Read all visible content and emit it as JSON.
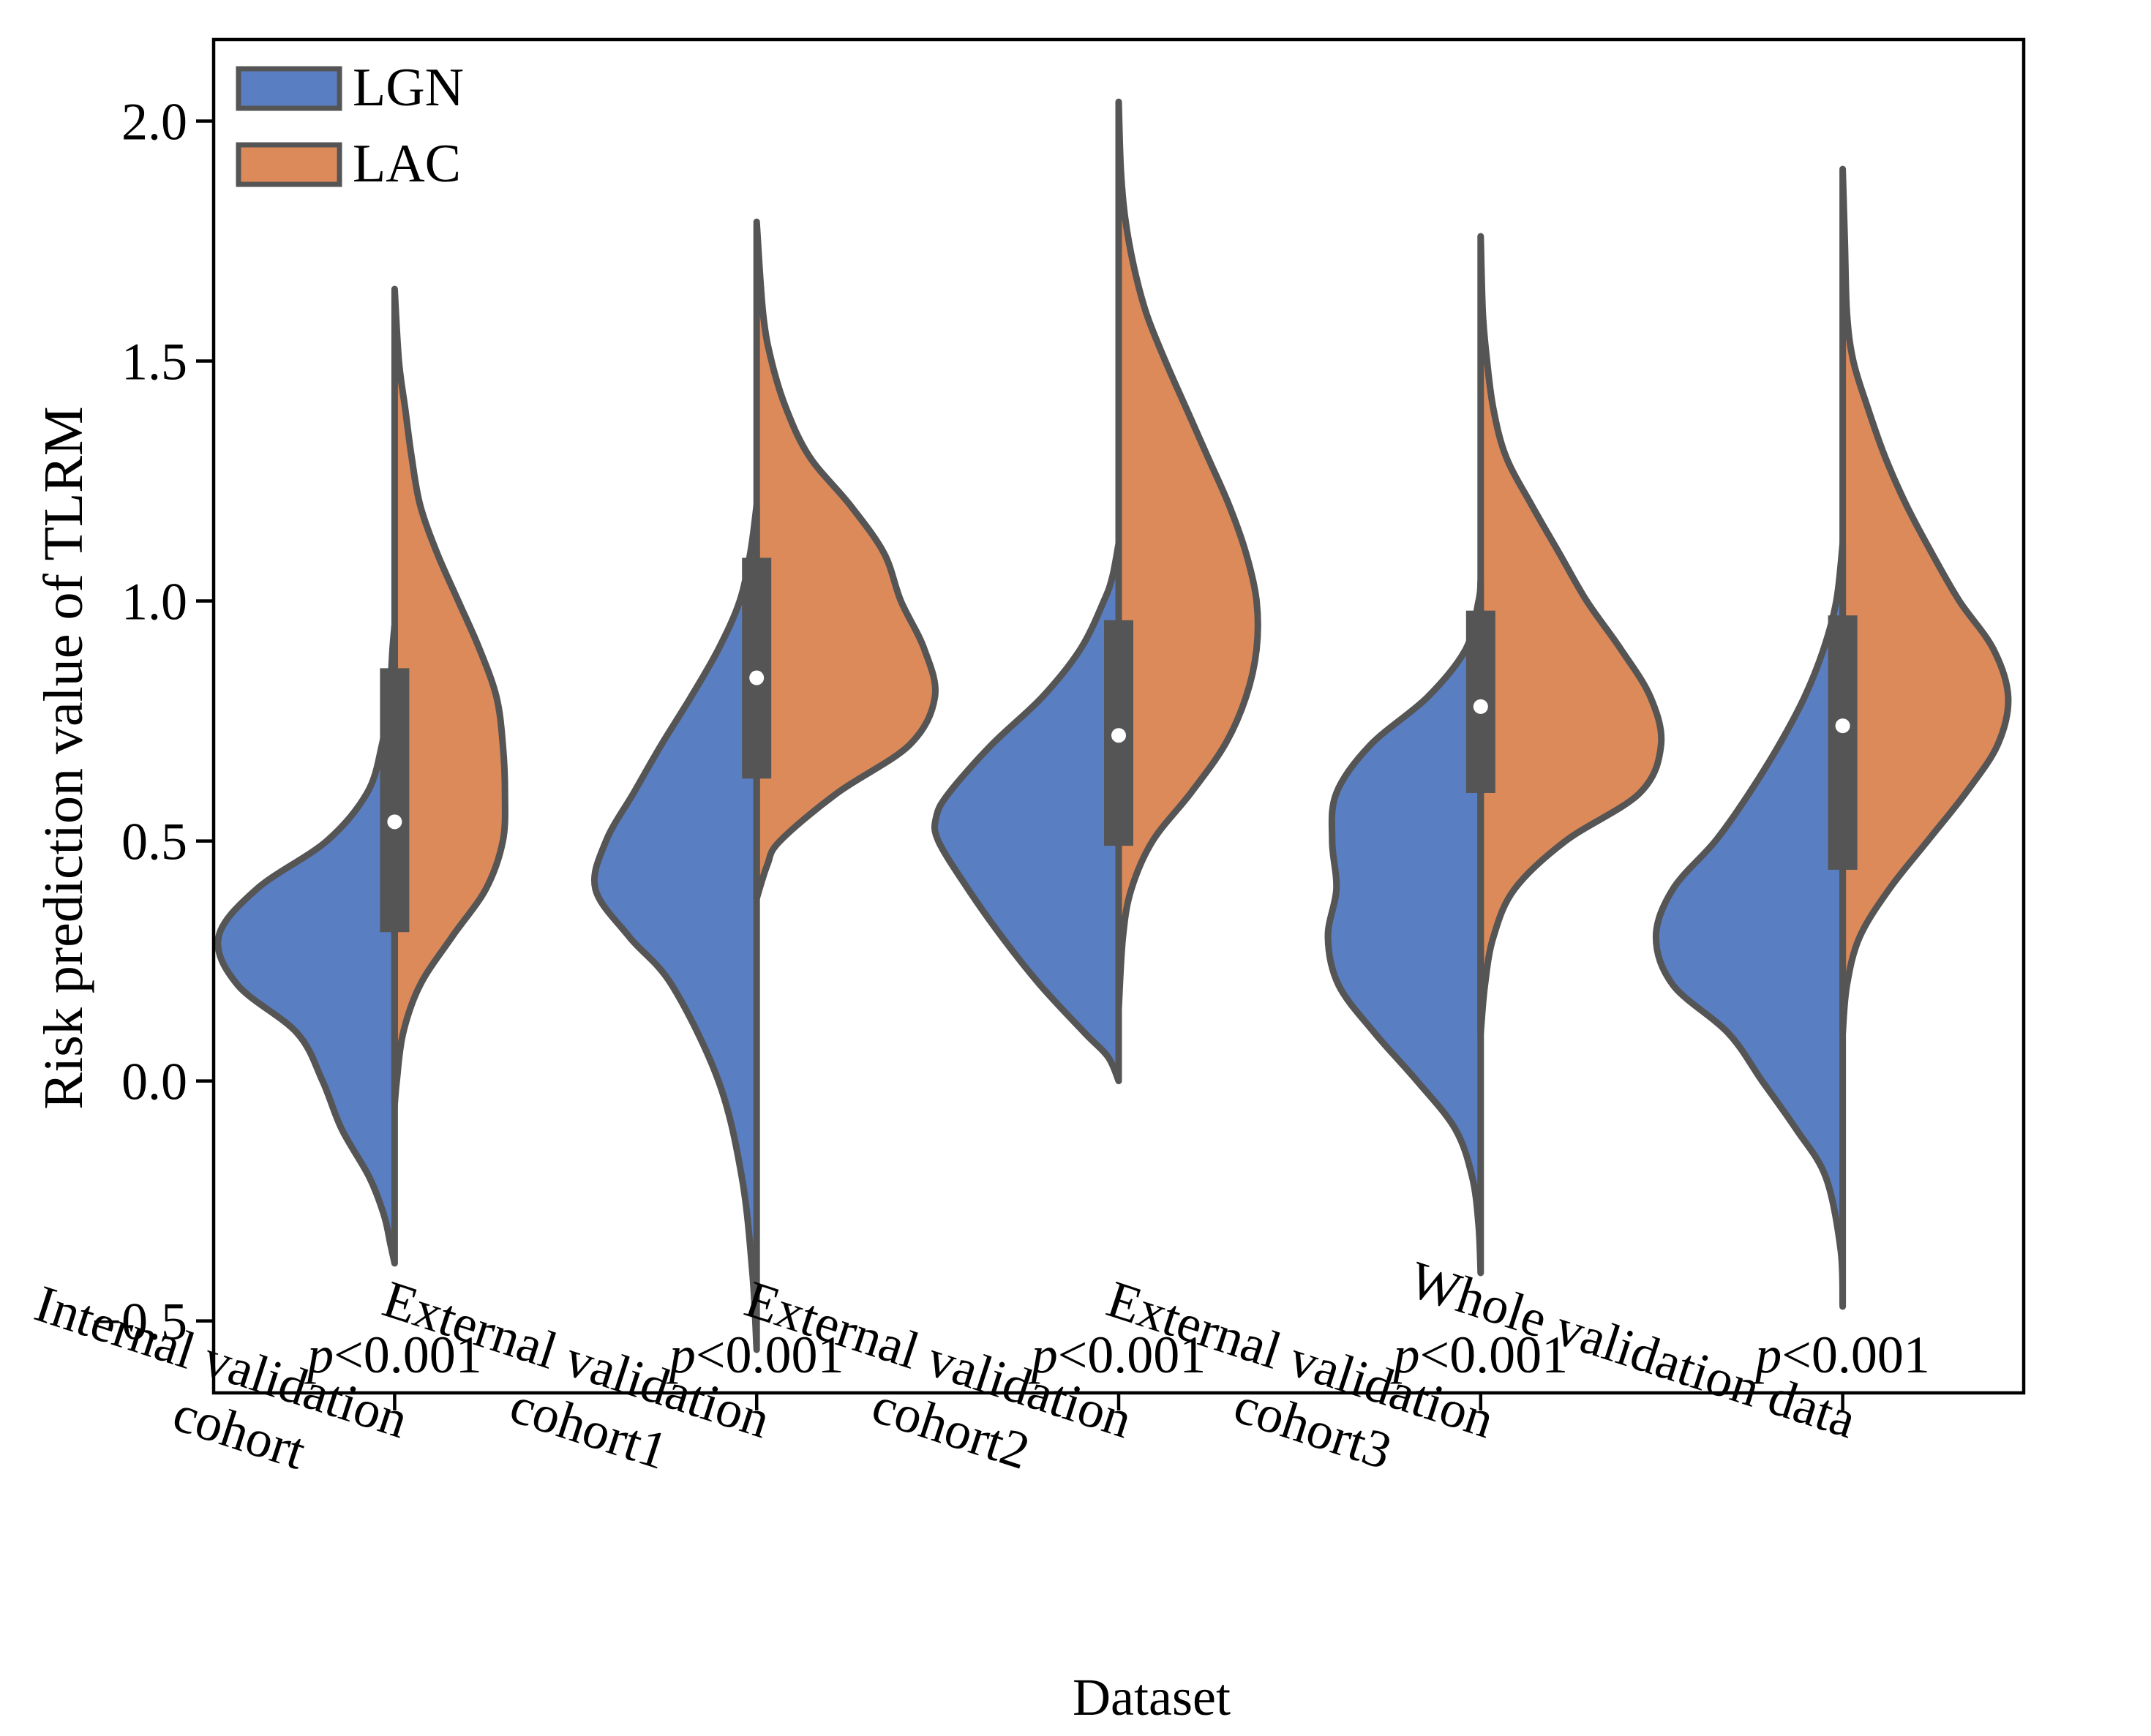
{
  "chart_data": {
    "type": "violin",
    "split": true,
    "title": "",
    "xlabel": "Dataset",
    "ylabel": "Risk prediction value of TLRM",
    "ylim": [
      -0.65,
      2.17
    ],
    "yticks": [
      -0.5,
      0.0,
      0.5,
      1.0,
      1.5,
      2.0
    ],
    "ytick_labels": [
      "−0.5",
      "0.0",
      "0.5",
      "1.0",
      "1.5",
      "2.0"
    ],
    "legend_position": "top-left",
    "legend": [
      {
        "name": "LGN",
        "color": "#5a7ec2"
      },
      {
        "name": "LAC",
        "color": "#dc8a5a"
      }
    ],
    "outline_color": "#555555",
    "categories": [
      {
        "label_line1": "Internal validation",
        "label_line2": "cohort",
        "p_prefix": "p",
        "p_value": "<0.001"
      },
      {
        "label_line1": "External validation",
        "label_line2": "cohort1",
        "p_prefix": "p",
        "p_value": "<0.001"
      },
      {
        "label_line1": "External validation",
        "label_line2": "cohort2",
        "p_prefix": "p",
        "p_value": "<0.001"
      },
      {
        "label_line1": "External validation",
        "label_line2": "cohort3",
        "p_prefix": "p",
        "p_value": "<0.001"
      },
      {
        "label_line1": "Whole validation data",
        "label_line2": "",
        "p_prefix": "p",
        "p_value": "<0.001"
      }
    ],
    "box": [
      {
        "q1": 0.31,
        "median": 0.54,
        "q3": 0.86,
        "whisker_low": -0.04,
        "whisker_high": 0.95
      },
      {
        "q1": 0.63,
        "median": 0.84,
        "q3": 1.09,
        "whisker_low": 0.38,
        "whisker_high": 1.2
      },
      {
        "q1": 0.49,
        "median": 0.72,
        "q3": 0.96,
        "whisker_low": 0.15,
        "whisker_high": 1.12
      },
      {
        "q1": 0.6,
        "median": 0.78,
        "q3": 0.98,
        "whisker_low": 0.1,
        "whisker_high": 1.04
      },
      {
        "q1": 0.44,
        "median": 0.74,
        "q3": 0.97,
        "whisker_low": 0.1,
        "whisker_high": 1.12
      }
    ],
    "density": {
      "LGN": [
        {
          "y": [
            -0.38,
            -0.34,
            -0.28,
            -0.2,
            -0.1,
            0.0,
            0.1,
            0.2,
            0.3,
            0.4,
            0.5,
            0.6,
            0.7,
            0.8,
            0.9,
            0.95
          ],
          "w": [
            0.0,
            0.02,
            0.05,
            0.12,
            0.25,
            0.34,
            0.46,
            0.74,
            0.83,
            0.65,
            0.32,
            0.13,
            0.06,
            0.025,
            0.01,
            0.0
          ]
        },
        {
          "y": [
            -0.56,
            -0.4,
            -0.2,
            0.0,
            0.2,
            0.3,
            0.4,
            0.5,
            0.6,
            0.7,
            0.8,
            0.9,
            1.0,
            1.1,
            1.2
          ],
          "w": [
            0.0,
            0.02,
            0.07,
            0.18,
            0.4,
            0.6,
            0.76,
            0.71,
            0.58,
            0.45,
            0.31,
            0.18,
            0.08,
            0.03,
            0.0
          ]
        },
        {
          "y": [
            0.0,
            0.05,
            0.1,
            0.2,
            0.3,
            0.4,
            0.5,
            0.55,
            0.6,
            0.7,
            0.8,
            0.9,
            1.0,
            1.05,
            1.12
          ],
          "w": [
            0.0,
            0.05,
            0.16,
            0.37,
            0.55,
            0.71,
            0.85,
            0.86,
            0.8,
            0.6,
            0.36,
            0.18,
            0.07,
            0.03,
            0.0
          ]
        },
        {
          "y": [
            -0.4,
            -0.3,
            -0.2,
            -0.1,
            0.0,
            0.1,
            0.2,
            0.3,
            0.4,
            0.5,
            0.6,
            0.7,
            0.8,
            0.9,
            1.0,
            1.04
          ],
          "w": [
            0.0,
            0.01,
            0.04,
            0.12,
            0.3,
            0.5,
            0.67,
            0.72,
            0.68,
            0.7,
            0.68,
            0.52,
            0.25,
            0.07,
            0.01,
            0.0
          ]
        },
        {
          "y": [
            -0.47,
            -0.35,
            -0.2,
            -0.1,
            0.0,
            0.1,
            0.2,
            0.3,
            0.4,
            0.5,
            0.6,
            0.7,
            0.8,
            0.9,
            1.0,
            1.12
          ],
          "w": [
            0.0,
            0.01,
            0.08,
            0.22,
            0.38,
            0.54,
            0.8,
            0.88,
            0.8,
            0.6,
            0.44,
            0.3,
            0.18,
            0.09,
            0.03,
            0.0
          ]
        }
      ],
      "LAC": [
        {
          "y": [
            -0.05,
            0.0,
            0.1,
            0.2,
            0.3,
            0.4,
            0.5,
            0.6,
            0.7,
            0.8,
            0.9,
            1.0,
            1.1,
            1.2,
            1.3,
            1.4,
            1.5,
            1.65
          ],
          "w": [
            0.0,
            0.01,
            0.04,
            0.12,
            0.27,
            0.43,
            0.51,
            0.52,
            0.51,
            0.48,
            0.4,
            0.3,
            0.2,
            0.12,
            0.08,
            0.05,
            0.02,
            0.0
          ]
        },
        {
          "y": [
            0.38,
            0.45,
            0.5,
            0.6,
            0.7,
            0.8,
            0.9,
            1.0,
            1.1,
            1.2,
            1.3,
            1.4,
            1.5,
            1.6,
            1.79
          ],
          "w": [
            0.0,
            0.05,
            0.11,
            0.38,
            0.72,
            0.84,
            0.79,
            0.68,
            0.6,
            0.44,
            0.25,
            0.14,
            0.07,
            0.03,
            0.0
          ]
        },
        {
          "y": [
            0.15,
            0.3,
            0.4,
            0.5,
            0.6,
            0.7,
            0.8,
            0.9,
            1.0,
            1.1,
            1.2,
            1.3,
            1.4,
            1.5,
            1.6,
            1.7,
            1.8,
            1.9,
            2.04
          ],
          "w": [
            0.0,
            0.02,
            0.06,
            0.16,
            0.34,
            0.5,
            0.6,
            0.65,
            0.65,
            0.6,
            0.52,
            0.42,
            0.32,
            0.22,
            0.13,
            0.07,
            0.03,
            0.01,
            0.0
          ]
        },
        {
          "y": [
            0.1,
            0.2,
            0.3,
            0.4,
            0.5,
            0.6,
            0.7,
            0.8,
            0.9,
            1.0,
            1.1,
            1.2,
            1.3,
            1.4,
            1.5,
            1.6,
            1.76
          ],
          "w": [
            0.0,
            0.02,
            0.06,
            0.16,
            0.4,
            0.75,
            0.85,
            0.8,
            0.66,
            0.5,
            0.37,
            0.24,
            0.12,
            0.06,
            0.03,
            0.01,
            0.0
          ]
        },
        {
          "y": [
            0.1,
            0.2,
            0.3,
            0.4,
            0.5,
            0.6,
            0.7,
            0.8,
            0.9,
            1.0,
            1.1,
            1.2,
            1.3,
            1.4,
            1.5,
            1.6,
            1.75,
            1.9
          ],
          "w": [
            0.0,
            0.02,
            0.08,
            0.22,
            0.4,
            0.58,
            0.73,
            0.78,
            0.71,
            0.55,
            0.42,
            0.3,
            0.2,
            0.12,
            0.05,
            0.02,
            0.01,
            0.0
          ]
        }
      ]
    }
  }
}
